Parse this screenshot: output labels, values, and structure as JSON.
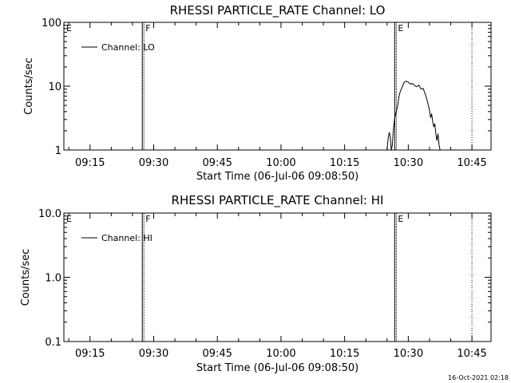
{
  "chart_data": [
    {
      "type": "line",
      "title": "RHESSI PARTICLE_RATE Channel: LO",
      "xlabel": "Start Time (06-Jul-06 09:08:50)",
      "ylabel": "Counts/sec",
      "yscale": "log",
      "ylim": [
        1,
        100
      ],
      "xlim": [
        "09:08:50",
        "10:49:30"
      ],
      "x_ticks": [
        "09:15",
        "09:30",
        "09:45",
        "10:00",
        "10:15",
        "10:30",
        "10:45"
      ],
      "y_ticks": [
        "1",
        "10",
        "100"
      ],
      "legend": {
        "placement": "top-left",
        "entries": [
          "Channel: LO"
        ]
      },
      "markers": [
        {
          "time": "09:08:50",
          "label": "E",
          "style": "none"
        },
        {
          "time": "09:27:30",
          "label": "F",
          "style": "double"
        },
        {
          "time": "10:27:00",
          "label": "E",
          "style": "double"
        },
        {
          "time": "10:45:00",
          "label": "",
          "style": "dotted"
        }
      ],
      "series": [
        {
          "name": "Channel: LO",
          "x": [
            "10:25:00",
            "10:25:15",
            "10:25:30",
            "10:25:45",
            "10:26:00",
            "10:26:15",
            "10:26:30",
            "10:26:45",
            "10:27:00",
            "10:27:15",
            "10:27:30",
            "10:27:45",
            "10:28:00",
            "10:28:30",
            "10:29:00",
            "10:29:30",
            "10:30:00",
            "10:30:30",
            "10:31:00",
            "10:31:30",
            "10:32:00",
            "10:32:30",
            "10:33:00",
            "10:33:30",
            "10:34:00",
            "10:34:30",
            "10:35:00",
            "10:35:15",
            "10:35:30",
            "10:35:45",
            "10:36:00",
            "10:36:15",
            "10:36:30",
            "10:36:45",
            "10:37:00",
            "10:37:15",
            "10:37:30"
          ],
          "y": [
            1,
            1.5,
            1.9,
            1.6,
            1,
            1.2,
            2.2,
            3.0,
            3.6,
            4.2,
            5.0,
            6.5,
            7.8,
            9.5,
            11.5,
            12.0,
            11.5,
            10.8,
            11.0,
            10.2,
            9.8,
            10.4,
            9.0,
            9.2,
            7.5,
            5.8,
            4.2,
            3.2,
            3.7,
            2.8,
            2.3,
            2.6,
            1.8,
            1.4,
            1.8,
            1.2,
            1
          ]
        }
      ]
    },
    {
      "type": "line",
      "title": "RHESSI PARTICLE_RATE Channel: HI",
      "xlabel": "Start Time (06-Jul-06 09:08:50)",
      "ylabel": "Counts/sec",
      "yscale": "log",
      "ylim": [
        0.1,
        10
      ],
      "xlim": [
        "09:08:50",
        "10:49:30"
      ],
      "x_ticks": [
        "09:15",
        "09:30",
        "09:45",
        "10:00",
        "10:15",
        "10:30",
        "10:45"
      ],
      "y_ticks": [
        "0.1",
        "1.0",
        "10.0"
      ],
      "legend": {
        "placement": "top-left",
        "entries": [
          "Channel: HI"
        ]
      },
      "markers": [
        {
          "time": "09:08:50",
          "label": "E",
          "style": "none"
        },
        {
          "time": "09:27:30",
          "label": "F",
          "style": "double"
        },
        {
          "time": "10:27:00",
          "label": "E",
          "style": "double"
        },
        {
          "time": "10:45:00",
          "label": "",
          "style": "dotted"
        }
      ],
      "series": [
        {
          "name": "Channel: HI",
          "x": [],
          "y": []
        }
      ]
    }
  ],
  "footer": {
    "timestamp": "16-Oct-2021 02:18"
  }
}
